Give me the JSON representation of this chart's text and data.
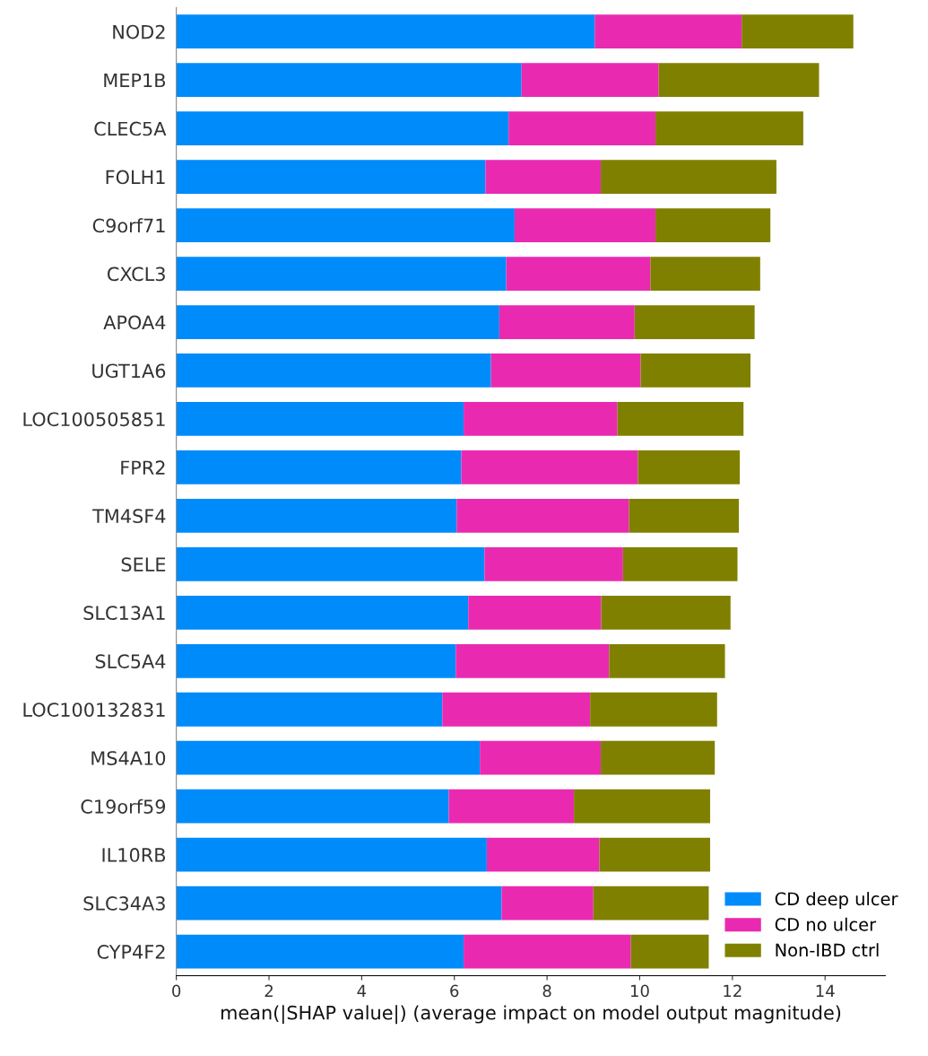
{
  "chart_data": {
    "type": "bar",
    "orientation": "horizontal",
    "stacked": true,
    "xlabel": "mean(|SHAP value|) (average impact on model output magnitude)",
    "categories": [
      "NOD2",
      "MEP1B",
      "CLEC5A",
      "FOLH1",
      "C9orf71",
      "CXCL3",
      "APOA4",
      "UGT1A6",
      "LOC100505851",
      "FPR2",
      "TM4SF4",
      "SELE",
      "SLC13A1",
      "SLC5A4",
      "LOC100132831",
      "MS4A10",
      "C19orf59",
      "IL10RB",
      "SLC34A3",
      "CYP4F2"
    ],
    "series": [
      {
        "name": "CD deep ulcer",
        "color": "#008bfb",
        "values": [
          9.03,
          7.45,
          7.17,
          6.67,
          7.3,
          7.12,
          6.97,
          6.79,
          6.2,
          6.15,
          6.05,
          6.65,
          6.3,
          6.03,
          5.74,
          6.55,
          5.88,
          6.7,
          7.02,
          6.2
        ]
      },
      {
        "name": "CD no ulcer",
        "color": "#e92ab0",
        "values": [
          3.17,
          2.96,
          3.17,
          2.49,
          3.04,
          3.11,
          2.92,
          3.23,
          3.32,
          3.81,
          3.72,
          2.99,
          2.87,
          3.31,
          3.19,
          2.61,
          2.7,
          2.43,
          1.98,
          3.61
        ]
      },
      {
        "name": "Non-IBD ctrl",
        "color": "#808000",
        "values": [
          2.41,
          3.46,
          3.19,
          3.79,
          2.48,
          2.37,
          2.59,
          2.37,
          2.72,
          2.2,
          2.37,
          2.47,
          2.79,
          2.5,
          2.74,
          2.46,
          2.94,
          2.39,
          2.49,
          1.68
        ]
      }
    ],
    "xlim": [
      0,
      15.3
    ],
    "xticks": [
      0,
      2,
      4,
      6,
      8,
      10,
      12,
      14
    ],
    "grid": false,
    "legend": "bottom right"
  }
}
